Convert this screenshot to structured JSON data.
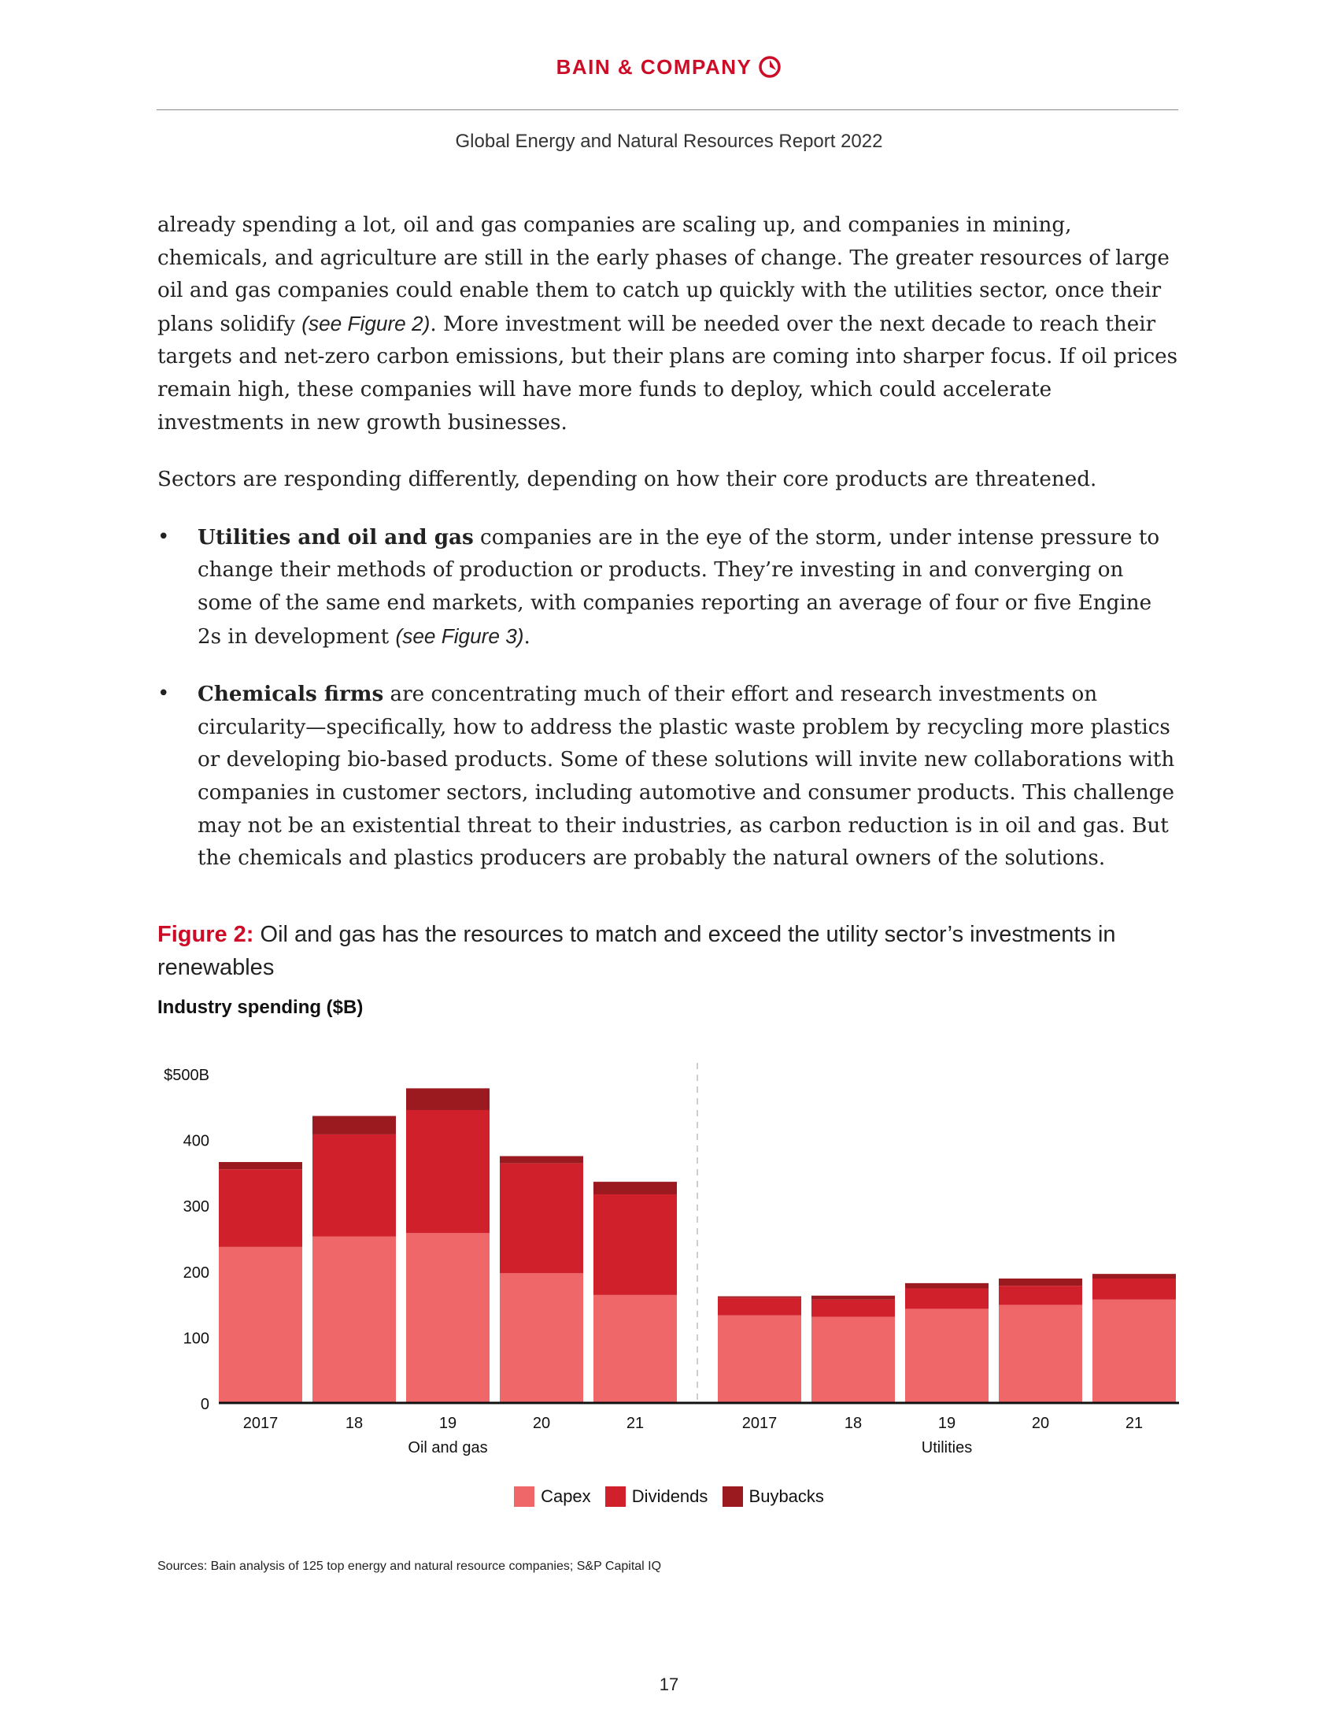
{
  "header": {
    "logo_text": "BAIN & COMPANY",
    "report_title": "Global Energy and Natural Resources Report 2022"
  },
  "body": {
    "para1_main": "already spending a lot, oil and gas companies are scaling up, and companies in mining, chemicals, and agriculture are still in the early phases of change. The greater resources of large oil and gas companies could enable them to catch up quickly with the utilities sector, once their plans solidify ",
    "para1_ref": "(see Figure 2)",
    "para1_end": ". More investment will be needed over the next decade to reach their targets and net-zero carbon emissions, but their plans are coming into sharper focus. If oil prices remain high, these companies will have more funds to deploy, which could accelerate investments in new growth businesses.",
    "para2": "Sectors are responding differently, depending on how their core products are threatened.",
    "bullet_symbol": "•",
    "bullet1_bold": "Utilities and oil and gas",
    "bullet1_text": " companies are in the eye of the storm, under intense pressure to change their methods of production or products. They’re investing in and converging on some of the same end markets, with companies reporting an average of four or five Engine 2s in development ",
    "bullet1_ref": "(see Figure 3)",
    "bullet1_end": ".",
    "bullet2_bold": "Chemicals firms",
    "bullet2_text": " are concentrating much of their effort and research investments on circularity—specifically, how to address the plastic waste problem by recycling more plastics or developing bio-based products. Some of these solutions will invite new collaborations with companies in customer sectors, including automotive and consumer products. This challenge may not be an existential threat to their industries, as carbon reduction is in oil and gas. But the chemicals and plastics producers are probably the natural owners of the solutions."
  },
  "figure": {
    "label": "Figure 2:",
    "title": " Oil and gas has the resources to match and exceed the utility sector’s investments in renewables",
    "subtitle": "Industry spending ($B)",
    "sources": "Sources: Bain analysis of 125 top energy and natural resource companies; S&P Capital IQ"
  },
  "chart_data": {
    "type": "bar",
    "stacked": true,
    "groups": [
      {
        "name": "Oil and gas",
        "categories": [
          "2017",
          "18",
          "19",
          "20",
          "21"
        ]
      },
      {
        "name": "Utilities",
        "categories": [
          "2017",
          "18",
          "19",
          "20",
          "21"
        ]
      }
    ],
    "categories": [
      "2017",
      "18",
      "19",
      "20",
      "21",
      "2017",
      "18",
      "19",
      "20",
      "21"
    ],
    "series": [
      {
        "name": "Capex",
        "color": "#f0676a",
        "values": [
          237,
          253,
          258,
          197,
          164,
          133,
          131,
          143,
          149,
          157
        ]
      },
      {
        "name": "Dividends",
        "color": "#d0202c",
        "values": [
          118,
          155,
          187,
          167,
          153,
          27,
          26,
          31,
          29,
          32
        ]
      },
      {
        "name": "Buybacks",
        "color": "#9a1a20",
        "values": [
          11,
          28,
          33,
          11,
          19,
          2,
          6,
          8,
          11,
          7
        ]
      }
    ],
    "y_tick_labels": [
      "0",
      "100",
      "200",
      "300",
      "400",
      "$500B"
    ],
    "y_ticks": [
      0,
      100,
      200,
      300,
      400,
      500
    ],
    "ylim": [
      0,
      500
    ],
    "grid": false,
    "legend_position": "bottom"
  },
  "page_number": "17"
}
